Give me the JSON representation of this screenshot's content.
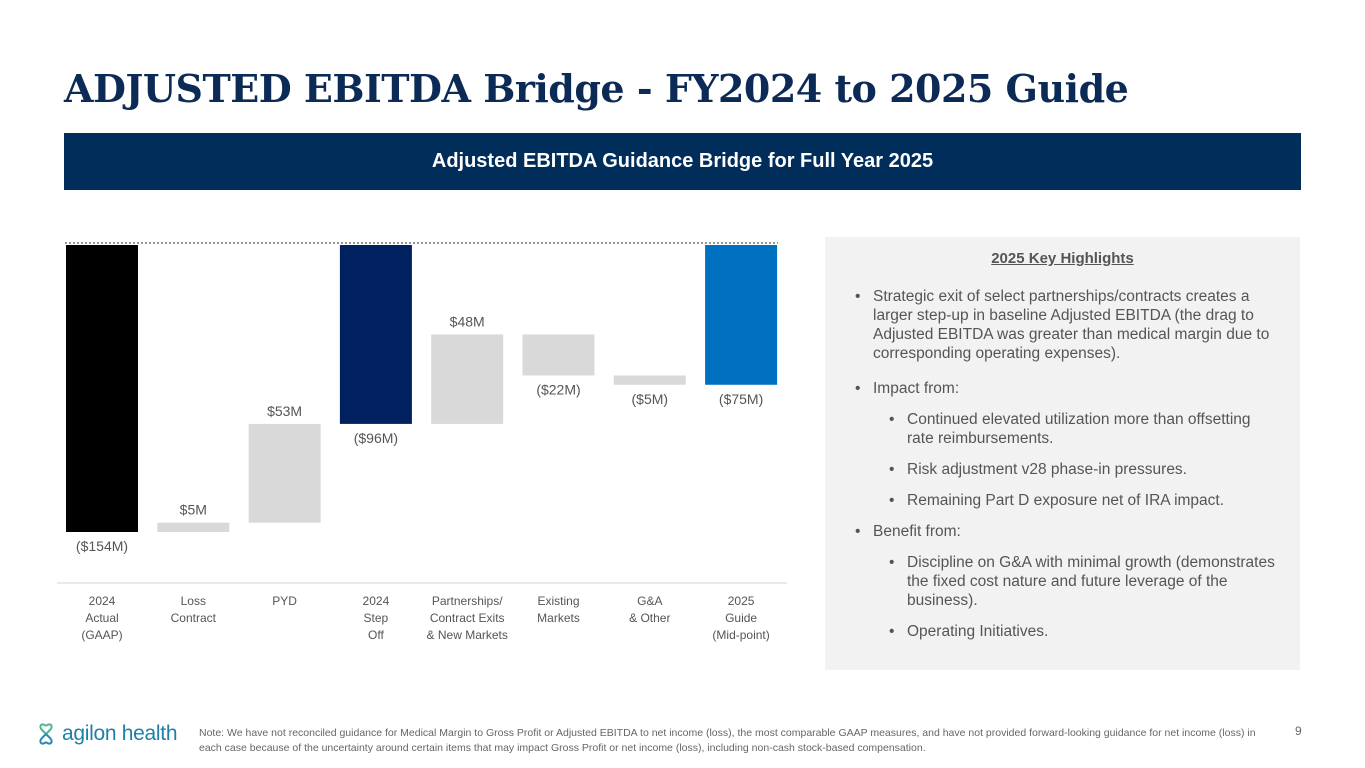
{
  "title": "ADJUSTED EBITDA Bridge - FY2024 to 2025 Guide",
  "banner": "Adjusted EBITDA Guidance Bridge for Full Year 2025",
  "chart_data": {
    "type": "waterfall",
    "categories": [
      "2024 Actual (GAAP)",
      "Loss Contract",
      "PYD",
      "2024 Step Off",
      "Partnerships/ Contract Exits & New Markets",
      "Existing Markets",
      "G&A & Other",
      "2025 Guide (Mid-point)"
    ],
    "category_lines": [
      [
        "2024",
        "Actual",
        "(GAAP)"
      ],
      [
        "Loss",
        "Contract"
      ],
      [
        "PYD"
      ],
      [
        "2024",
        "Step",
        "Off"
      ],
      [
        "Partnerships/",
        "Contract  Exits",
        "& New Markets"
      ],
      [
        "Existing",
        "Markets"
      ],
      [
        "G&A",
        "& Other"
      ],
      [
        "2025",
        "Guide",
        "(Mid-point)"
      ]
    ],
    "values": [
      -154,
      5,
      53,
      -96,
      48,
      -22,
      -5,
      -75
    ],
    "kinds": [
      "total",
      "delta",
      "delta",
      "total",
      "delta",
      "delta",
      "delta",
      "total"
    ],
    "labels": [
      "($154M)",
      "$5M",
      "$53M",
      "($96M)",
      "$48M",
      "($22M)",
      "($5M)",
      "($75M)"
    ],
    "colors": {
      "2024 Actual (GAAP)": "#000000",
      "2024 Step Off": "#002060",
      "2025 Guide (Mid-point)": "#0070c0",
      "delta": "#d9d9d9"
    },
    "ylim": [
      -165,
      0
    ]
  },
  "highlights": {
    "heading": "2025 Key Highlights",
    "b1": "Strategic exit of select partnerships/contracts creates a larger step-up in baseline Adjusted EBITDA (the drag to Adjusted EBITDA was greater than medical margin due to corresponding operating expenses).",
    "b2": "Impact from:",
    "b2a": "Continued elevated utilization more than offsetting rate reimbursements.",
    "b2b": "Risk adjustment v28 phase-in pressures.",
    "b2c": "Remaining Part D exposure net of IRA impact.",
    "b3": "Benefit from:",
    "b3a": "Discipline on G&A with minimal growth (demonstrates the fixed cost nature and future leverage of the business).",
    "b3b": "Operating Initiatives."
  },
  "footer": {
    "logo": "agilon health",
    "note": "Note: We have not reconciled guidance for Medical Margin to Gross Profit or Adjusted EBITDA to net income (loss), the most comparable GAAP measures, and have not provided forward-looking guidance for net income (loss) in each case because of the uncertainty around certain items that may impact Gross Profit or net income (loss), including non-cash stock-based compensation.",
    "page": "9"
  }
}
